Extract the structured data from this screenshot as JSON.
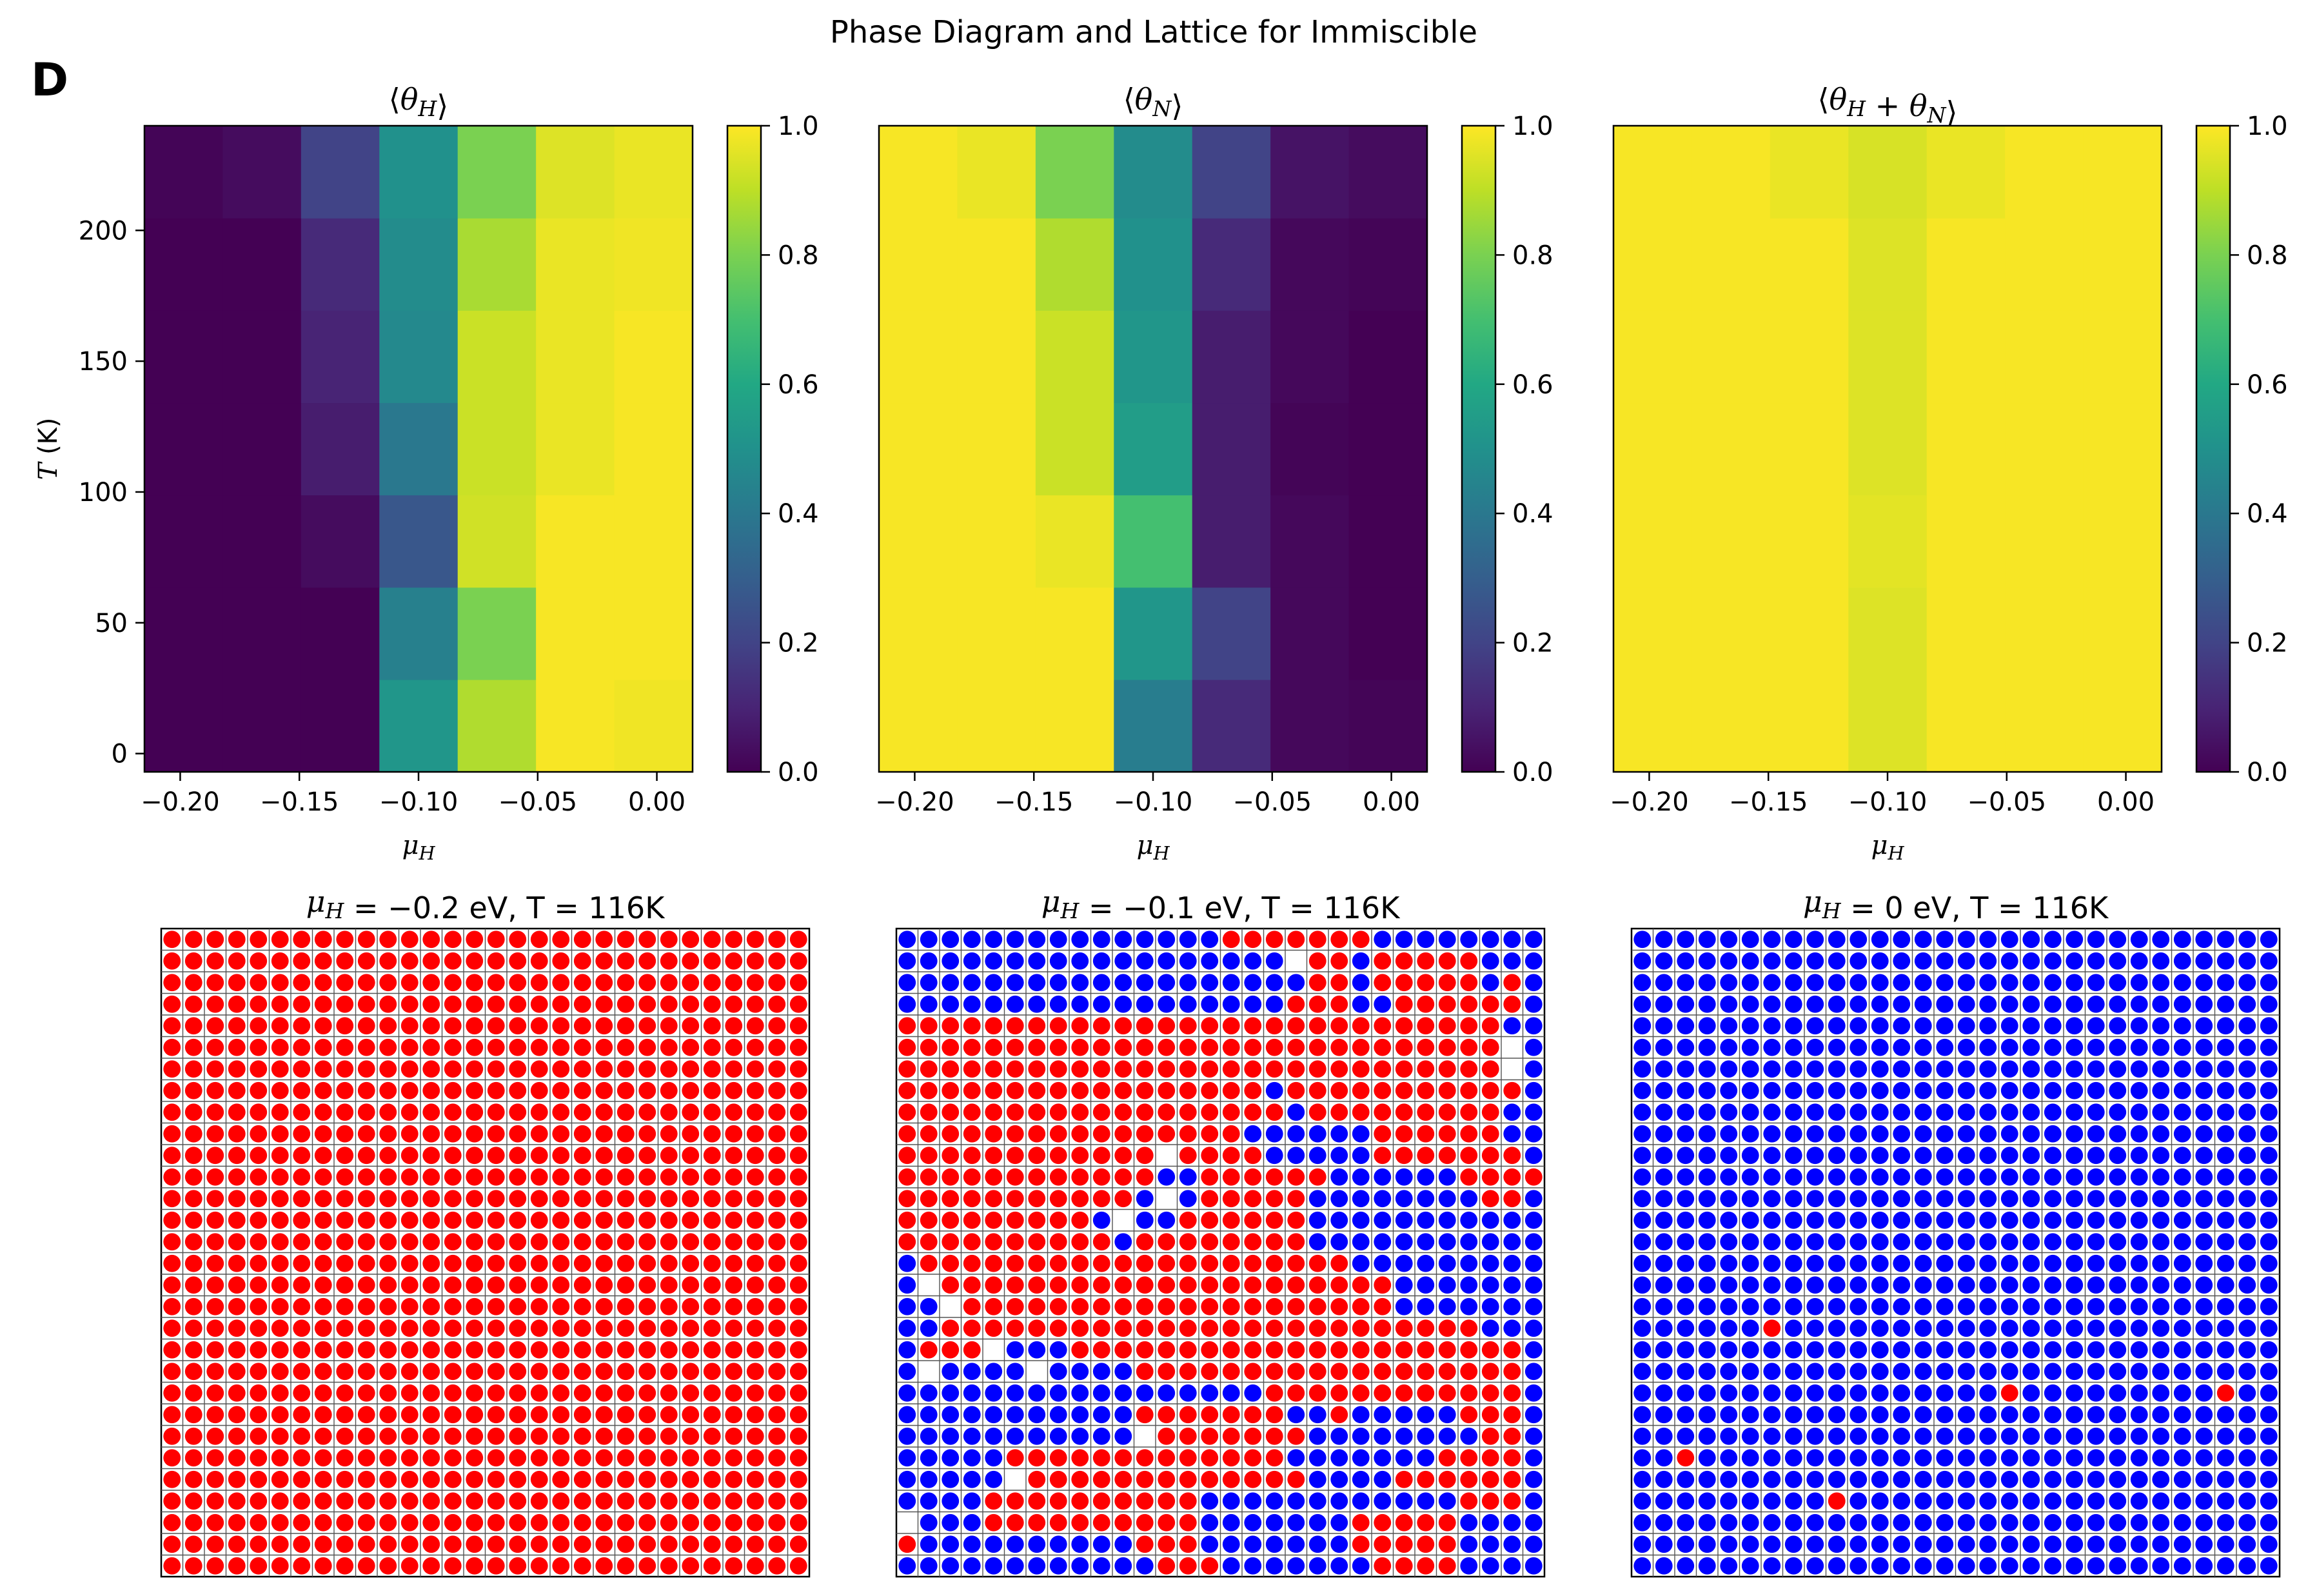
{
  "figure": {
    "title": "Phase Diagram and Lattice for Immiscible",
    "panel_label": "D"
  },
  "chart_data": [
    {
      "type": "heatmap",
      "title": "⟨θH⟩",
      "xlabel": "μH",
      "ylabel": "T (K)",
      "x": [
        -0.2,
        -0.175,
        -0.15,
        -0.125,
        -0.1,
        -0.075,
        -0.05,
        -0.025,
        0.0
      ],
      "x_cells": [
        -0.2,
        -0.15,
        -0.1,
        -0.05,
        0.0
      ],
      "y_cells_K": [
        0,
        50,
        100,
        150,
        200,
        233
      ],
      "xlim": [
        -0.215,
        0.015
      ],
      "ylim": [
        -7,
        240
      ],
      "x_ticks": [
        "−0.20",
        "−0.15",
        "−0.10",
        "−0.05",
        "0.00"
      ],
      "y_ticks": [
        "0",
        "50",
        "100",
        "150",
        "200"
      ],
      "colorbar": {
        "min": 0.0,
        "max": 1.0,
        "ticks": [
          "0.0",
          "0.2",
          "0.4",
          "0.6",
          "0.8",
          "1.0"
        ],
        "colormap": "viridis"
      },
      "values_bottom_to_top": [
        [
          0.0,
          0.0,
          0.0,
          0.52,
          0.88,
          0.99,
          0.98
        ],
        [
          0.0,
          0.0,
          0.0,
          0.43,
          0.8,
          0.99,
          0.99
        ],
        [
          0.0,
          0.0,
          0.03,
          0.27,
          0.93,
          0.99,
          0.99
        ],
        [
          0.0,
          0.0,
          0.08,
          0.4,
          0.92,
          0.97,
          0.99
        ],
        [
          0.0,
          0.0,
          0.1,
          0.47,
          0.92,
          0.97,
          0.99
        ],
        [
          0.0,
          0.0,
          0.12,
          0.48,
          0.87,
          0.97,
          0.98
        ],
        [
          0.01,
          0.03,
          0.2,
          0.5,
          0.8,
          0.95,
          0.97
        ]
      ]
    },
    {
      "type": "heatmap",
      "title": "⟨θN⟩",
      "xlabel": "μH",
      "xlim": [
        -0.215,
        0.015
      ],
      "ylim": [
        -7,
        240
      ],
      "x_ticks": [
        "−0.20",
        "−0.15",
        "−0.10",
        "−0.05",
        "0.00"
      ],
      "colorbar": {
        "min": 0.0,
        "max": 1.0,
        "ticks": [
          "0.0",
          "0.2",
          "0.4",
          "0.6",
          "0.8",
          "1.0"
        ],
        "colormap": "viridis"
      },
      "values_bottom_to_top": [
        [
          0.99,
          0.99,
          0.99,
          0.42,
          0.12,
          0.02,
          0.01
        ],
        [
          0.99,
          0.99,
          0.99,
          0.52,
          0.2,
          0.02,
          0.0
        ],
        [
          0.99,
          0.99,
          0.97,
          0.7,
          0.08,
          0.02,
          0.0
        ],
        [
          0.99,
          0.99,
          0.92,
          0.55,
          0.08,
          0.01,
          0.0
        ],
        [
          0.99,
          0.99,
          0.92,
          0.52,
          0.08,
          0.02,
          0.0
        ],
        [
          0.99,
          0.99,
          0.88,
          0.5,
          0.12,
          0.02,
          0.01
        ],
        [
          0.99,
          0.97,
          0.8,
          0.48,
          0.2,
          0.05,
          0.03
        ]
      ]
    },
    {
      "type": "heatmap",
      "title": "⟨θH + θN⟩",
      "xlabel": "μH",
      "xlim": [
        -0.215,
        0.015
      ],
      "ylim": [
        -7,
        240
      ],
      "x_ticks": [
        "−0.20",
        "−0.15",
        "−0.10",
        "−0.05",
        "0.00"
      ],
      "colorbar": {
        "min": 0.0,
        "max": 1.0,
        "ticks": [
          "0.0",
          "0.2",
          "0.4",
          "0.6",
          "0.8",
          "1.0"
        ],
        "colormap": "viridis"
      },
      "values_bottom_to_top": [
        [
          0.99,
          0.99,
          0.99,
          0.95,
          0.99,
          0.99,
          0.99
        ],
        [
          0.99,
          0.99,
          0.99,
          0.95,
          0.99,
          0.99,
          0.99
        ],
        [
          0.99,
          0.99,
          0.99,
          0.96,
          0.99,
          0.99,
          0.99
        ],
        [
          0.99,
          0.99,
          0.99,
          0.95,
          0.99,
          0.99,
          0.99
        ],
        [
          0.99,
          0.99,
          0.99,
          0.95,
          0.99,
          0.99,
          0.99
        ],
        [
          0.99,
          0.99,
          0.99,
          0.95,
          0.99,
          0.99,
          0.99
        ],
        [
          0.99,
          0.99,
          0.97,
          0.94,
          0.97,
          0.99,
          0.99
        ]
      ]
    },
    {
      "type": "lattice",
      "title": "μH = −0.2 eV, T = 116K",
      "grid_size": 30,
      "legend_colors": {
        "H": "#ff0000",
        "N": "#0000ff",
        "empty": "#ffffff"
      },
      "occupancy": "all H"
    },
    {
      "type": "lattice",
      "title": "μH = −0.1 eV, T = 116K",
      "grid_size": 30,
      "occupancy": "mixed domains of H (red) and N (blue) with scattered vacancies"
    },
    {
      "type": "lattice",
      "title": "μH = 0 eV, T = 116K",
      "grid_size": 30,
      "occupancy": "all N except a few H sites",
      "h_sites_row_col": [
        [
          18,
          6
        ],
        [
          21,
          17
        ],
        [
          21,
          27
        ],
        [
          24,
          2
        ],
        [
          26,
          9
        ]
      ]
    }
  ]
}
